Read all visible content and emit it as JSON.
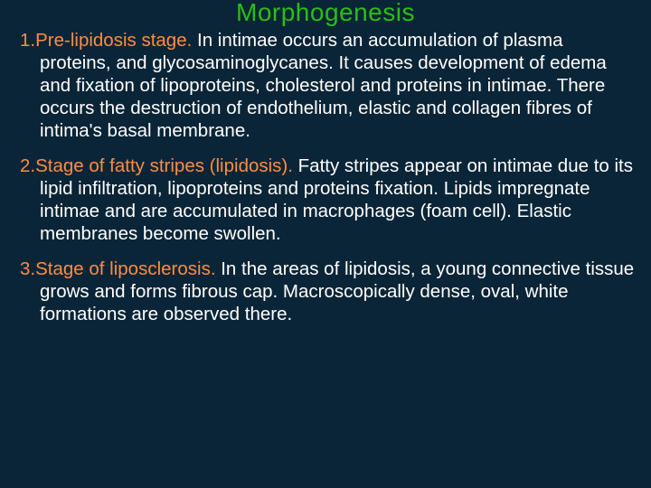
{
  "colors": {
    "background": "#0a2537",
    "body_text": "#ffffff",
    "title": "#29bf12",
    "lead": "#ff8c42"
  },
  "typography": {
    "title_fontsize": 28,
    "body_fontsize": 20.5,
    "line_height": 1.22,
    "font_family": "Verdana, Geneva, sans-serif"
  },
  "title": "Morphogenesis",
  "items": [
    {
      "num": "1.",
      "lead": "Pre-lipidosis stage.",
      "body": " In intimae occurs an accumulation of plasma proteins, and glycosaminoglycanes. It causes development of edema and fixation of lipoproteins, cholesterol and proteins in intimae. There occurs the destruction of endothelium, elastic and collagen fibres of intima's basal membrane."
    },
    {
      "num": "2.",
      "lead": "Stage of fatty stripes (lipidosis).",
      "body": " Fatty stripes appear on intimae due to its lipid infiltration, lipoproteins and proteins fixation. Lipids impregnate intimae and are accumulated in macrophages (foam cell). Elastic membranes become swollen."
    },
    {
      "num": "3.",
      "lead": "Stage of liposclerosis.",
      "body": " In the areas of lipidosis, a young connective tissue grows and forms   fibrous cap. Macroscopically dense, oval, white formations are observed there."
    }
  ]
}
